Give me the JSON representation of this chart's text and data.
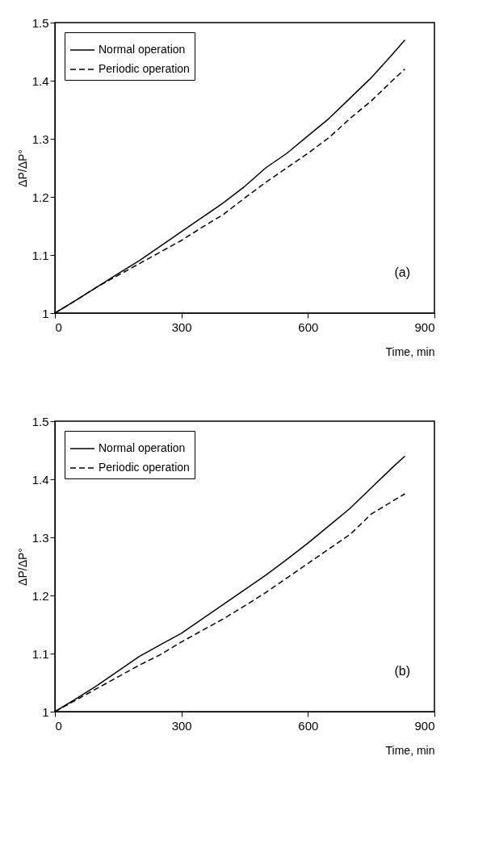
{
  "chart_data": [
    {
      "type": "line",
      "xlabel": "Time, min",
      "ylabel": "ΔP/ΔP°",
      "annotations": [
        "(a)"
      ],
      "x": [
        0,
        50,
        100,
        150,
        200,
        250,
        300,
        350,
        400,
        450,
        500,
        550,
        600,
        650,
        700,
        750,
        800,
        830
      ],
      "series": [
        {
          "name": "Normal operation",
          "color": "#000000",
          "line_style": "solid",
          "values": [
            1,
            1.022,
            1.045,
            1.068,
            1.09,
            1.115,
            1.14,
            1.165,
            1.19,
            1.218,
            1.25,
            1.275,
            1.305,
            1.335,
            1.37,
            1.405,
            1.445,
            1.47
          ]
        },
        {
          "name": "Periodic operation",
          "color": "#000000",
          "line_style": "dashed",
          "values": [
            1,
            1.022,
            1.045,
            1.065,
            1.085,
            1.105,
            1.125,
            1.148,
            1.17,
            1.198,
            1.225,
            1.25,
            1.275,
            1.302,
            1.335,
            1.365,
            1.4,
            1.42
          ]
        }
      ],
      "xlim": [
        0,
        900
      ],
      "xticks": [
        0,
        300,
        600,
        900
      ],
      "ylim": [
        1,
        1.5
      ],
      "yticks": [
        1,
        1.1,
        1.2,
        1.3,
        1.4,
        1.5
      ],
      "grid": false,
      "legend": "top left",
      "marker": "none"
    },
    {
      "type": "line",
      "xlabel": "Time, min",
      "ylabel": "ΔP/ΔP°",
      "annotations": [
        "(b)"
      ],
      "x": [
        0,
        50,
        100,
        150,
        200,
        250,
        300,
        350,
        400,
        450,
        500,
        550,
        600,
        650,
        700,
        750,
        800,
        830
      ],
      "series": [
        {
          "name": "Normal operation",
          "color": "#000000",
          "line_style": "solid",
          "values": [
            1,
            1.022,
            1.045,
            1.07,
            1.095,
            1.115,
            1.135,
            1.16,
            1.185,
            1.21,
            1.235,
            1.262,
            1.29,
            1.32,
            1.35,
            1.385,
            1.42,
            1.44
          ]
        },
        {
          "name": "Periodic operation",
          "color": "#000000",
          "line_style": "dashed",
          "values": [
            1,
            1.02,
            1.04,
            1.06,
            1.08,
            1.098,
            1.12,
            1.14,
            1.16,
            1.182,
            1.205,
            1.23,
            1.255,
            1.28,
            1.305,
            1.34,
            1.362,
            1.375
          ]
        }
      ],
      "xlim": [
        0,
        900
      ],
      "xticks": [
        0,
        300,
        600,
        900
      ],
      "ylim": [
        1,
        1.5
      ],
      "yticks": [
        1,
        1.1,
        1.2,
        1.3,
        1.4,
        1.5
      ],
      "grid": false,
      "legend": "top left",
      "marker": "none"
    }
  ]
}
